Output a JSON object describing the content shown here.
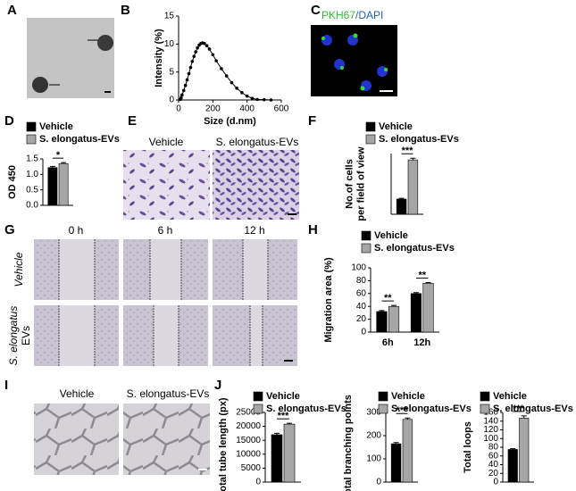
{
  "panels": {
    "letters": [
      "A",
      "B",
      "C",
      "D",
      "E",
      "F",
      "G",
      "H",
      "I",
      "J"
    ],
    "C": {
      "title": [
        "PKH67",
        "/DAPI"
      ]
    },
    "E": {
      "labels": [
        "Vehicle",
        "S. elongatus-EVs"
      ]
    },
    "G": {
      "columns": [
        "0 h",
        "6 h",
        "12 h"
      ],
      "rows": [
        "Vehicle",
        "S. elongatus",
        "EVs"
      ]
    },
    "I": {
      "labels": [
        "Vehicle",
        "S. elongatus-EVs"
      ]
    }
  },
  "chart_data": [
    {
      "type": "line",
      "xlabel": "Size (d.nm)",
      "ylabel": "Intensity (%)",
      "color": "#000000",
      "x": [
        10,
        15,
        20,
        30,
        40,
        50,
        60,
        70,
        80,
        90,
        100,
        110,
        120,
        130,
        140,
        150,
        165,
        180,
        200,
        220,
        250,
        280,
        310,
        340,
        370,
        400,
        430,
        460,
        500,
        540
      ],
      "values": [
        0.1,
        0.4,
        0.9,
        1.7,
        2.6,
        3.6,
        4.7,
        5.8,
        6.9,
        7.8,
        8.6,
        9.3,
        9.8,
        10.1,
        10.2,
        10.1,
        9.7,
        9.1,
        8.1,
        7.0,
        5.6,
        4.3,
        3.1,
        2.1,
        1.3,
        0.7,
        0.3,
        0.1,
        0.05,
        0
      ],
      "xlim": [
        0,
        600
      ],
      "xticks": [
        0,
        200,
        400,
        600
      ],
      "ylim": [
        0,
        15
      ],
      "yticks": [
        0,
        5,
        10,
        15
      ]
    },
    {
      "type": "bar",
      "ylabel": "OD 450",
      "series": [
        {
          "name": "Vehicle",
          "color": "#000000",
          "values": [
            1.22
          ],
          "errors": [
            0.04
          ]
        },
        {
          "name": "S. elongatus-EVs",
          "color": "#a6a6a6",
          "values": [
            1.35
          ],
          "errors": [
            0.03
          ]
        }
      ],
      "ylim": [
        0,
        1.5
      ],
      "yticks": [
        {
          "value": 0,
          "label": "0.0"
        },
        {
          "value": 0.5,
          "label": "0.5"
        },
        {
          "value": 1,
          "label": "1.0"
        },
        {
          "value": 1.5,
          "label": "1.5"
        }
      ],
      "significance": [
        "*"
      ]
    },
    {
      "type": "bar",
      "ylabel": [
        "No.of cells",
        "per field of view"
      ],
      "series": [
        {
          "name": "Vehicle",
          "color": "#000000",
          "values": [
            55
          ],
          "errors": [
            3
          ]
        },
        {
          "name": "S. elongatus-EVs",
          "color": "#a6a6a6",
          "values": [
            197
          ],
          "errors": [
            6
          ]
        }
      ],
      "ylim": [
        0,
        220
      ],
      "yticks": [],
      "significance": [
        "***"
      ]
    },
    {
      "type": "bar",
      "ylabel": "Migration area (%)",
      "categories": [
        "6h",
        "12h"
      ],
      "series": [
        {
          "name": "Vehicle",
          "color": "#000000",
          "values": [
            32,
            60
          ],
          "errors": [
            1.5,
            1.5
          ]
        },
        {
          "name": "S. elongatus-EVs",
          "color": "#a6a6a6",
          "values": [
            40,
            76
          ],
          "errors": [
            1.5,
            1
          ]
        }
      ],
      "ylim": [
        0,
        100
      ],
      "yticks": [
        0,
        20,
        40,
        60,
        80,
        100
      ],
      "significance": [
        "**",
        "**"
      ]
    },
    {
      "type": "bar",
      "ylabel": "Total tube length (px)",
      "series": [
        {
          "name": "Vehicle",
          "color": "#000000",
          "values": [
            17000
          ],
          "errors": [
            500
          ]
        },
        {
          "name": "S. elongatus-EVs",
          "color": "#a6a6a6",
          "values": [
            20800
          ],
          "errors": [
            300
          ]
        }
      ],
      "ylim": [
        0,
        25000
      ],
      "yticks": [
        0,
        5000,
        10000,
        15000,
        20000,
        25000
      ],
      "significance": [
        "***"
      ]
    },
    {
      "type": "bar",
      "ylabel": "Total branching points",
      "series": [
        {
          "name": "Vehicle",
          "color": "#000000",
          "values": [
            165
          ],
          "errors": [
            5
          ]
        },
        {
          "name": "S. elongatus-EVs",
          "color": "#a6a6a6",
          "values": [
            270
          ],
          "errors": [
            6
          ]
        }
      ],
      "ylim": [
        0,
        300
      ],
      "yticks": [
        0,
        100,
        200,
        300
      ],
      "significance": [
        "***"
      ]
    },
    {
      "type": "bar",
      "ylabel": "Total loops",
      "series": [
        {
          "name": "Vehicle",
          "color": "#000000",
          "values": [
            75
          ],
          "errors": [
            2
          ]
        },
        {
          "name": "S. elongatus-EVs",
          "color": "#a6a6a6",
          "values": [
            147
          ],
          "errors": [
            5
          ]
        }
      ],
      "ylim": [
        0,
        160
      ],
      "yticks": [
        0,
        20,
        40,
        60,
        80,
        100,
        120,
        140,
        160
      ],
      "significance": [
        "***"
      ]
    }
  ]
}
